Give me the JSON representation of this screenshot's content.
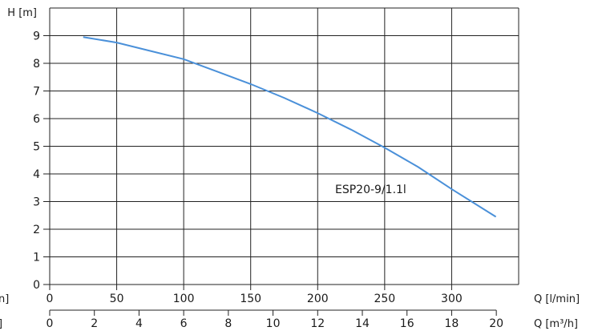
{
  "chart_data": {
    "type": "line",
    "title": "",
    "ylabel": "H [m]",
    "xlabel_primary": "Q [l/min]",
    "xlabel_secondary": "Q [m³/h]",
    "left_cropped_labels": [
      "n]",
      "]"
    ],
    "xlim": [
      0,
      350
    ],
    "ylim": [
      0,
      10
    ],
    "grid": true,
    "x_ticks_lpm": [
      0,
      50,
      100,
      150,
      200,
      250,
      300
    ],
    "x_grid_lpm": [
      0,
      50,
      100,
      150,
      200,
      250,
      300,
      350
    ],
    "x_ticks_m3h": [
      0,
      2,
      4,
      6,
      8,
      10,
      12,
      14,
      16,
      18,
      20
    ],
    "y_ticks": [
      0,
      1,
      2,
      3,
      4,
      5,
      6,
      7,
      8,
      9
    ],
    "y_grid": [
      0,
      1,
      2,
      3,
      4,
      5,
      6,
      7,
      8,
      9,
      10
    ],
    "series": [
      {
        "name": "ESP20-9/1.1l",
        "color": "#4a90d9",
        "x": [
          25,
          50,
          75,
          100,
          125,
          150,
          175,
          200,
          225,
          250,
          275,
          300,
          333
        ],
        "y": [
          8.95,
          8.75,
          8.45,
          8.15,
          7.7,
          7.25,
          6.75,
          6.2,
          5.6,
          4.95,
          4.25,
          3.45,
          2.45
        ]
      }
    ],
    "annotations": [
      {
        "text": "ESP20-9/1.1l",
        "x": 213,
        "y": 3.3
      }
    ]
  }
}
